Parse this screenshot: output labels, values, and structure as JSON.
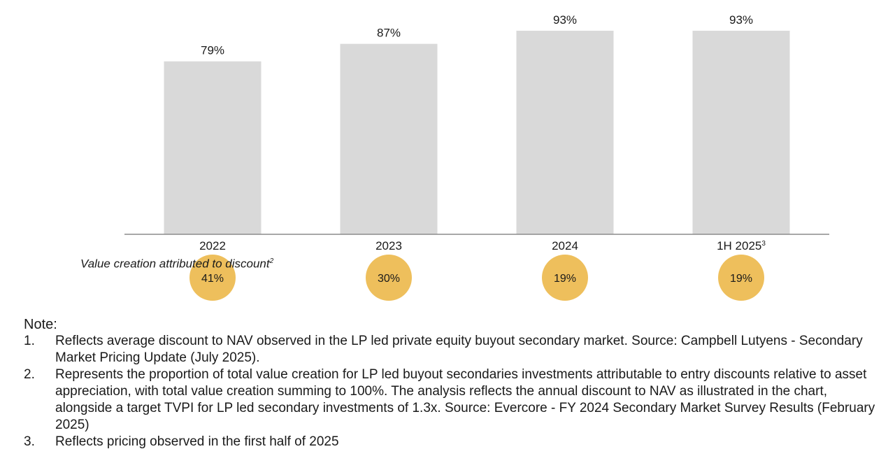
{
  "chart_data": {
    "type": "bar",
    "categories": [
      "2022",
      "2023",
      "2024",
      "1H 2025"
    ],
    "category_superscripts": [
      "",
      "",
      "",
      "3"
    ],
    "values": [
      79,
      87,
      93,
      93
    ],
    "data_labels": [
      "79%",
      "87%",
      "93%",
      "93%"
    ],
    "ylim": [
      0,
      100
    ],
    "grid": false,
    "bar_color": "#d9d9d9",
    "secondary_row": {
      "label": "Value creation attributed to discount",
      "label_superscript": "2",
      "values": [
        41,
        30,
        19,
        19
      ],
      "labels": [
        "41%",
        "30%",
        "19%",
        "19%"
      ],
      "color": "#eebf5c"
    }
  },
  "notes": {
    "title": "Note:",
    "items": [
      {
        "num": "1.",
        "text": "Reflects average discount to NAV observed in the LP led private equity buyout secondary market. Source: Campbell Lutyens - Secondary Market Pricing Update (July 2025)."
      },
      {
        "num": "2.",
        "text": "Represents the proportion of total value creation for LP led buyout secondaries investments attributable to entry discounts relative to asset appreciation, with total value creation summing to 100%. The analysis reflects the annual discount to NAV as illustrated in the chart, alongside a target TVPI for LP led secondary investments of 1.3x. Source: Evercore - FY 2024 Secondary Market Survey Results (February 2025)"
      },
      {
        "num": "3.",
        "text": "Reflects pricing observed in the first half of 2025"
      }
    ]
  }
}
